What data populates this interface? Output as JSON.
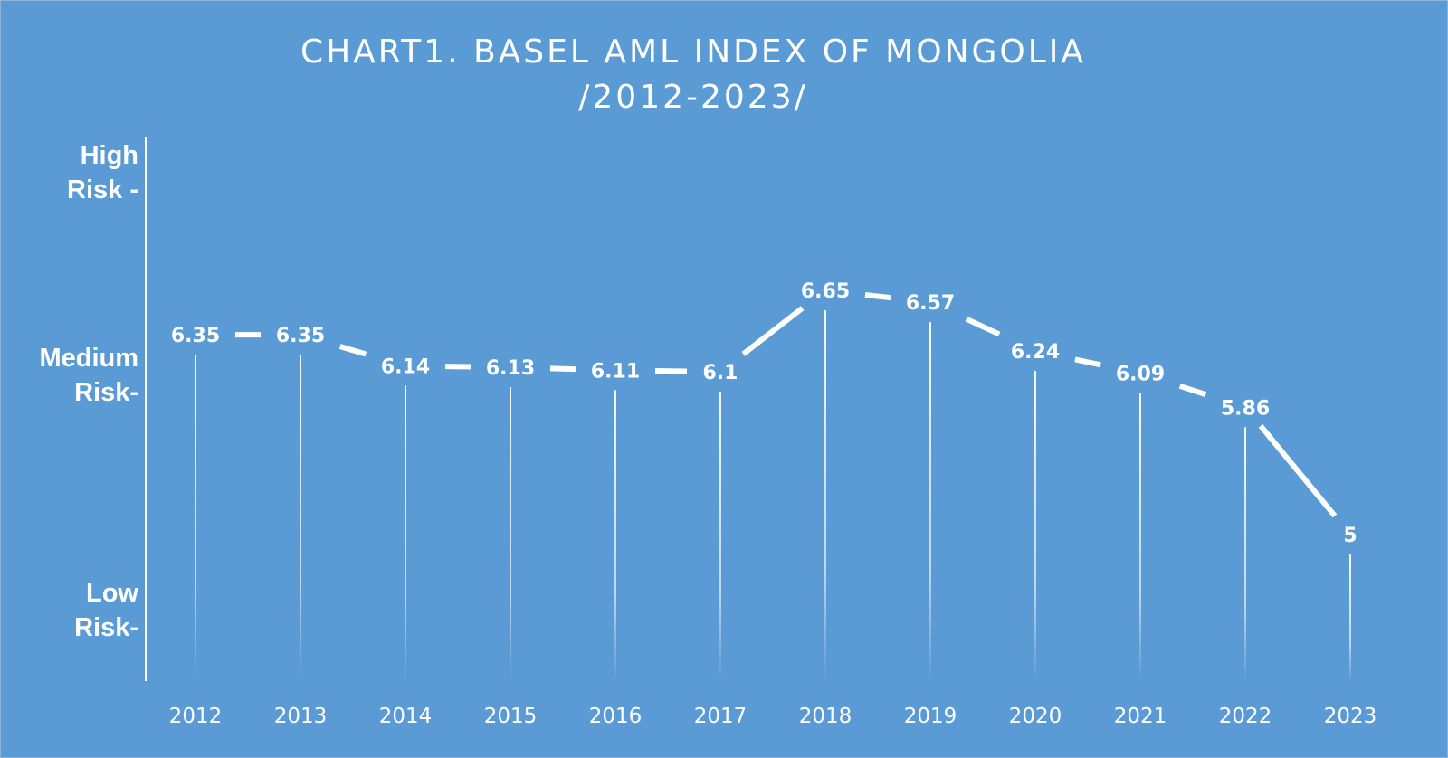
{
  "chart_data": {
    "type": "line",
    "title": "CHART1. BASEL AML INDEX OF MONGOLIA",
    "subtitle": "/2012-2023/",
    "categories": [
      "2012",
      "2013",
      "2014",
      "2015",
      "2016",
      "2017",
      "2018",
      "2019",
      "2020",
      "2021",
      "2022",
      "2023"
    ],
    "series": [
      {
        "values": [
          6.35,
          6.35,
          6.14,
          6.13,
          6.11,
          6.1,
          6.65,
          6.57,
          6.24,
          6.09,
          5.86,
          5
        ]
      }
    ],
    "data_labels": [
      "6.35",
      "6.35",
      "6.14",
      "6.13",
      "6.11",
      "6.1",
      "6.65",
      "6.57",
      "6.24",
      "6.09",
      "5.86",
      "5"
    ],
    "y_axis_labels": {
      "high": [
        "High",
        "Risk -"
      ],
      "medium": [
        "Medium",
        "Risk-"
      ],
      "low": [
        "Low",
        "Risk-"
      ]
    },
    "grid": false,
    "legend": "none",
    "colors": {
      "background": "#5b9bd5",
      "line": "#ffffff",
      "text": "#ffffff"
    }
  }
}
